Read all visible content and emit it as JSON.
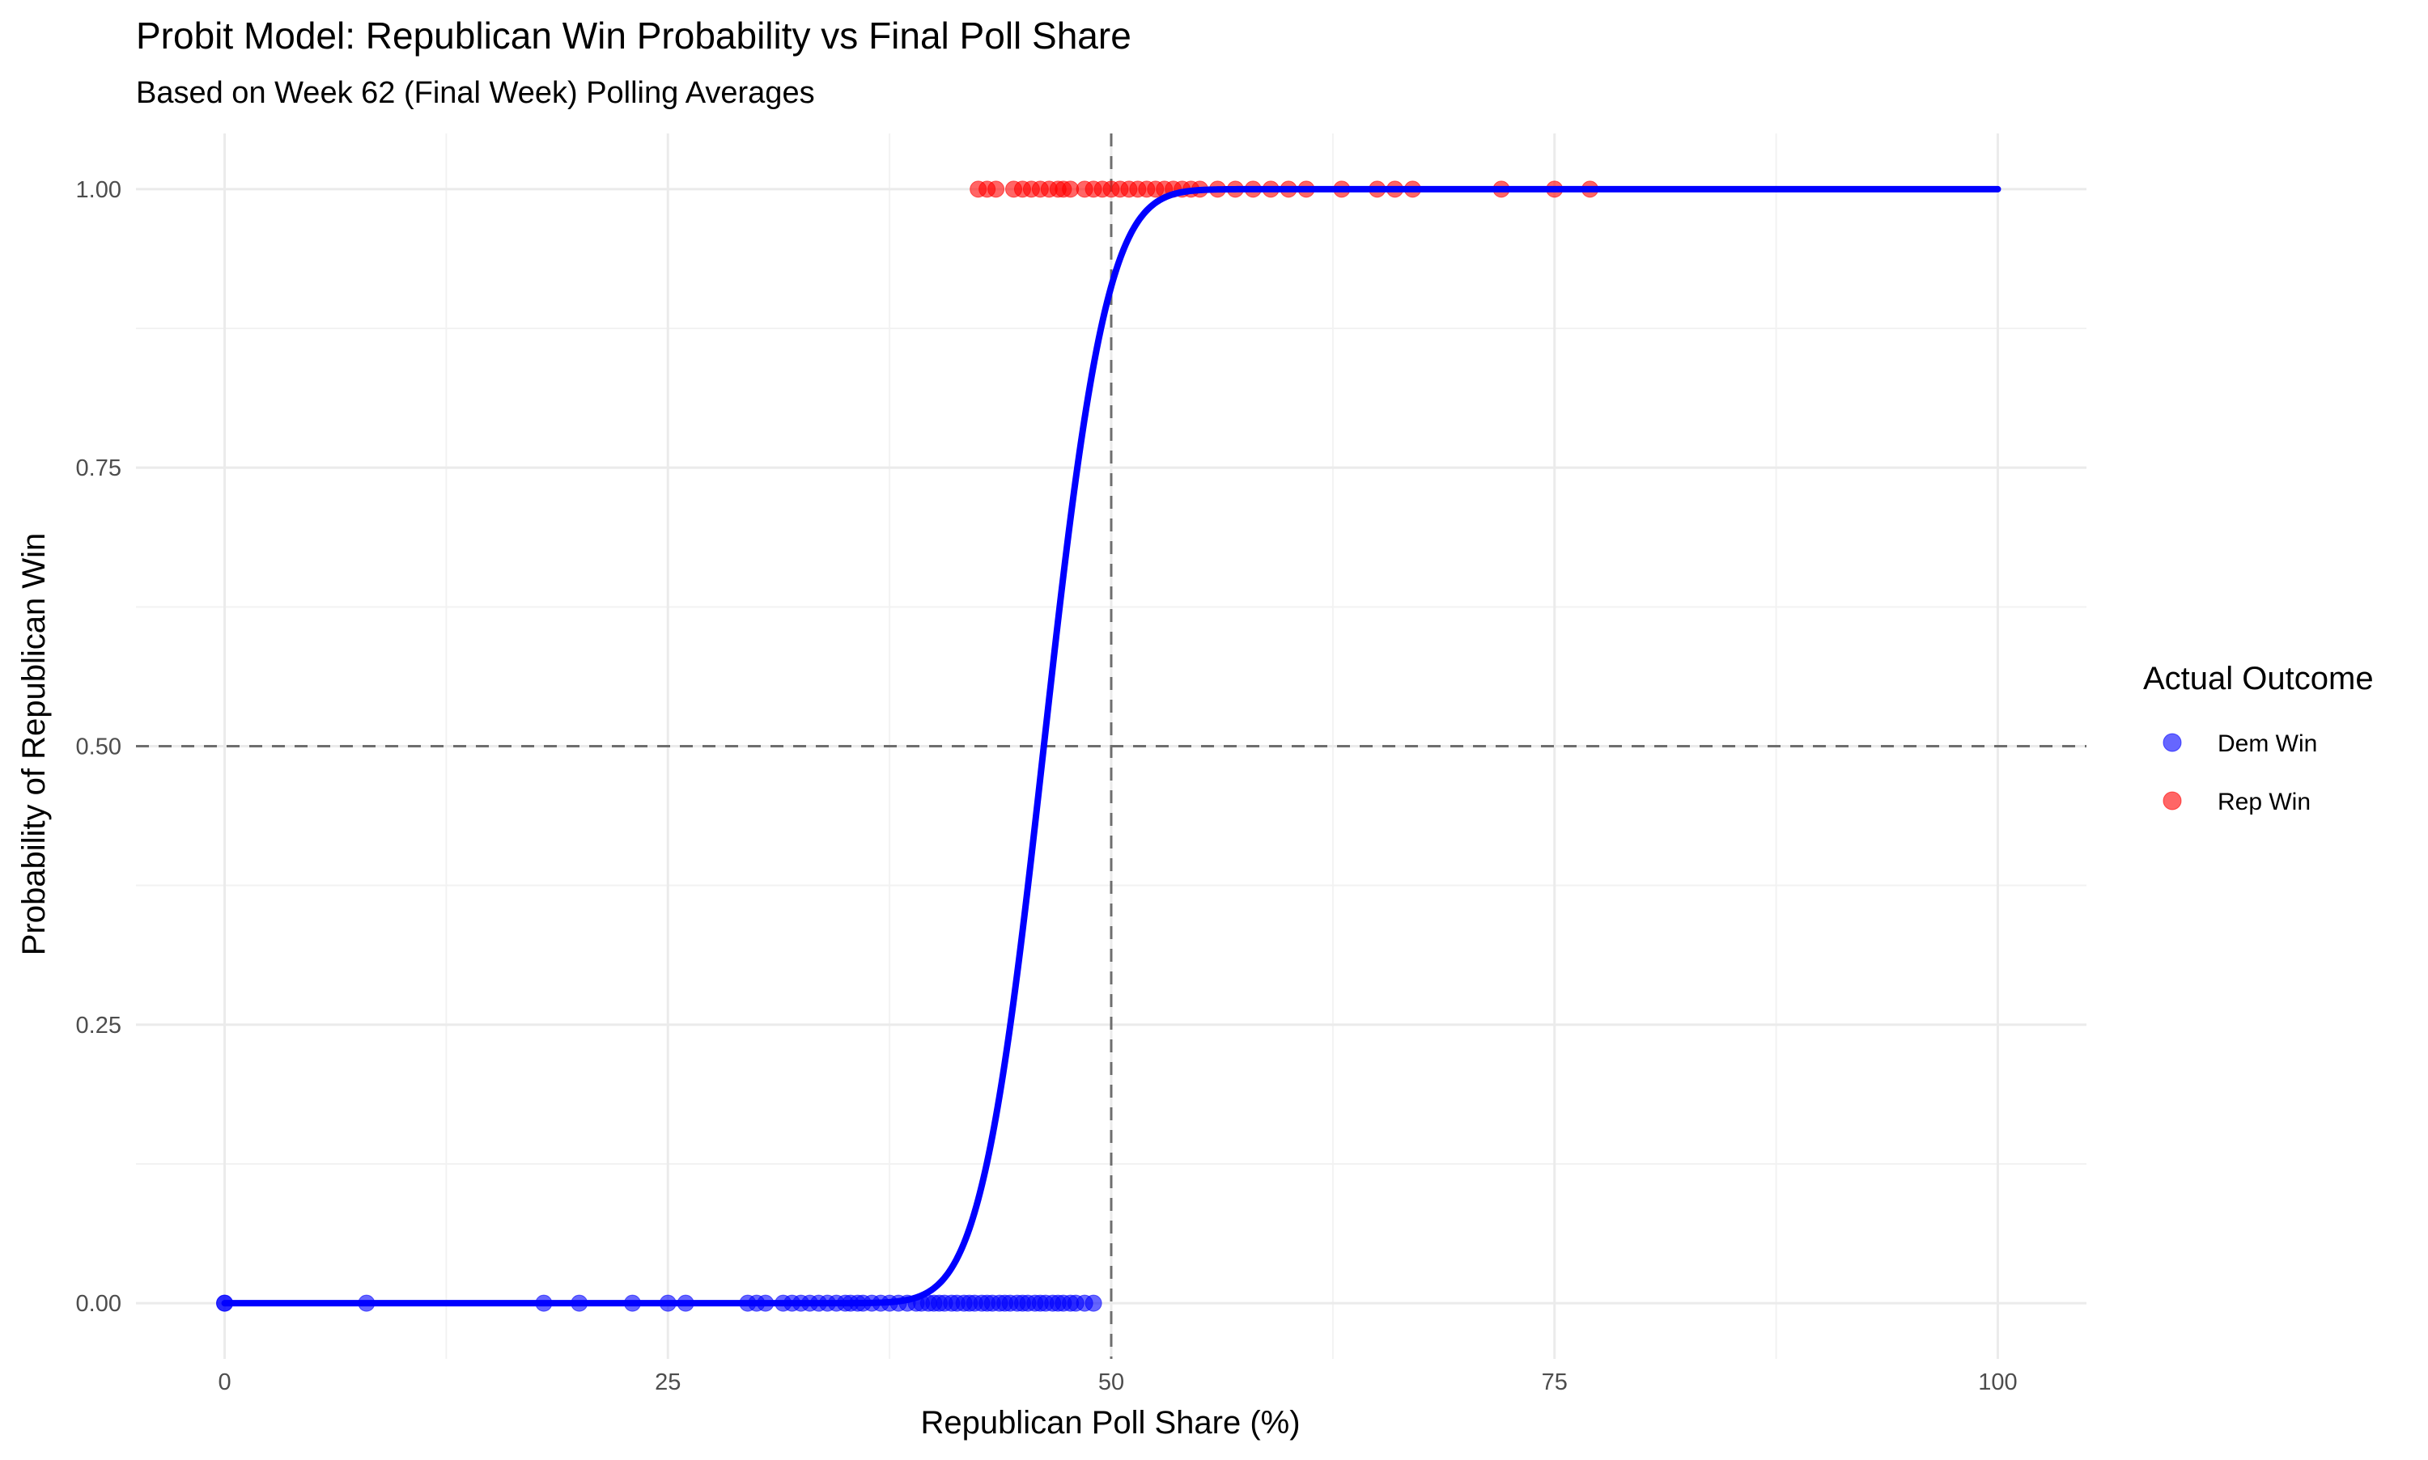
{
  "chart_data": {
    "type": "scatter",
    "title": "Probit Model: Republican Win Probability vs Final Poll Share",
    "subtitle": "Based on Week 62 (Final Week) Polling Averages",
    "xlabel": "Republican Poll Share (%)",
    "ylabel": "Probability of Republican Win",
    "xlim": [
      -5,
      105
    ],
    "ylim": [
      -0.05,
      1.05
    ],
    "x_ticks": [
      0,
      25,
      50,
      75,
      100
    ],
    "x_tick_labels": [
      "0",
      "25",
      "50",
      "75",
      "100"
    ],
    "y_ticks": [
      0,
      0.25,
      0.5,
      0.75,
      1
    ],
    "y_tick_labels": [
      "0.00",
      "0.25",
      "0.50",
      "0.75",
      "1.00"
    ],
    "grid": true,
    "reference_lines": {
      "vertical_x": 50,
      "horizontal_y": 0.5,
      "style": "dashed"
    },
    "fitted_curve": {
      "model": "probit",
      "mean": 46.2,
      "sd": 2.8,
      "x_range": [
        0,
        100
      ],
      "color": "#0000ff"
    },
    "legend": {
      "title": "Actual Outcome",
      "placement": "right",
      "entries": [
        {
          "label": "Dem Win",
          "color": "#0000ff"
        },
        {
          "label": "Rep Win",
          "color": "#ff0000"
        }
      ]
    },
    "series": [
      {
        "name": "Dem Win",
        "color": "#0000ff",
        "y": 0,
        "x": [
          0,
          0,
          8,
          18,
          20,
          23,
          25,
          26,
          29.5,
          30,
          30.5,
          31.5,
          32,
          32.5,
          33,
          33.5,
          34,
          34.5,
          35,
          35.3,
          35.7,
          36,
          36.5,
          37,
          37.5,
          38,
          38.5,
          39,
          39.3,
          39.7,
          40,
          40.3,
          40.6,
          41,
          41.3,
          41.7,
          42,
          42.3,
          42.7,
          43,
          43.3,
          43.7,
          44,
          44.3,
          44.7,
          45,
          45.3,
          45.7,
          46,
          46.3,
          46.7,
          47,
          47.3,
          47.7,
          48,
          48.5,
          49
        ]
      },
      {
        "name": "Rep Win",
        "color": "#ff0000",
        "y": 1,
        "x": [
          42.5,
          43,
          43.5,
          44.5,
          45,
          45.5,
          46,
          46.5,
          47,
          47.3,
          47.7,
          48.5,
          49,
          49.5,
          50,
          50.5,
          51,
          51.5,
          52,
          52.5,
          53,
          53.5,
          54,
          54.5,
          55,
          56,
          57,
          58,
          59,
          60,
          61,
          63,
          65,
          66,
          67,
          72,
          75,
          77
        ]
      }
    ]
  }
}
